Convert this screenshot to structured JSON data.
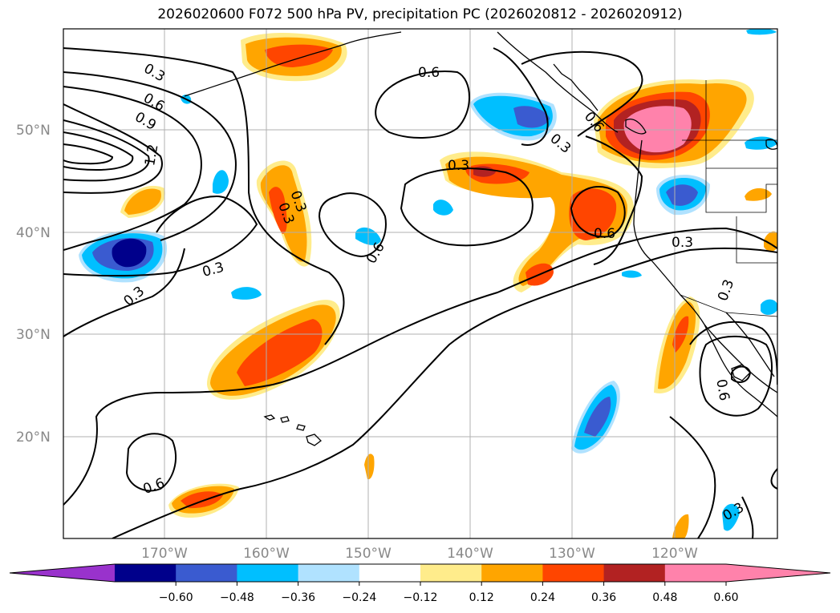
{
  "title": "2026020600 F072 500 hPa PV, precipitation PC (2026020812 - 2026020912)",
  "map": {
    "lat_labels": [
      "50°N",
      "40°N",
      "30°N",
      "20°N"
    ],
    "lon_labels": [
      "170°W",
      "160°W",
      "150°W",
      "140°W",
      "130°W",
      "120°W"
    ],
    "contour_labels": [
      "0.3",
      "0.6",
      "0.9",
      "1.2",
      "0.6",
      "0.3",
      "0.3",
      "0.3",
      "0.3",
      "0.6",
      "0.6",
      "0.3",
      "0.3",
      "0.6",
      "0.3",
      "0.6",
      "0.3",
      "0.6",
      "0.3"
    ]
  },
  "colorbar": {
    "colors": [
      "#9932cc",
      "#00008b",
      "#3a5bd0",
      "#00bfff",
      "#b0e2ff",
      "#ffffff",
      "#ffec8b",
      "#ffa500",
      "#ff4500",
      "#b22222",
      "#ff82ab",
      "#ff82ab"
    ],
    "ticks": [
      "−0.60",
      "−0.48",
      "−0.36",
      "−0.24",
      "−0.12",
      "0.12",
      "0.24",
      "0.36",
      "0.48",
      "0.60"
    ]
  }
}
